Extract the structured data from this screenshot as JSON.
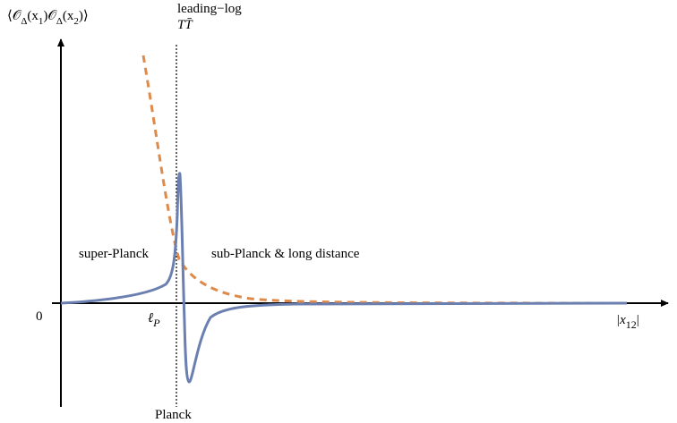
{
  "y_axis_label": {
    "base": [
      "⟨𝒪",
      "Δ",
      "(x",
      "1",
      ")𝒪",
      "Δ",
      "(x",
      "2",
      ")⟩"
    ],
    "superscript": "leading−log",
    "subscript": "TT̄"
  },
  "x_axis_label": {
    "open": "|x",
    "subscript": "12",
    "close": "|"
  },
  "origin_label": "0",
  "planck_length_label": {
    "text": "ℓ",
    "subscript": "P"
  },
  "region_labels": [
    "super-Planck",
    "sub-Planck & long distance"
  ],
  "planck_line_label": "Planck"
}
